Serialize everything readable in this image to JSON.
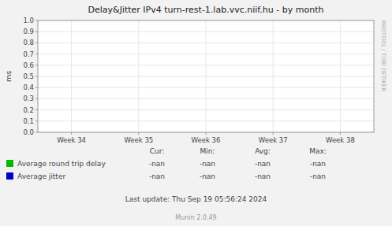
{
  "chart_data": {
    "type": "line",
    "title": "Delay&Jitter IPv4 turn-rest-1.lab.vvc.niif.hu - by month",
    "y_label": "ms",
    "categories": [
      "Week 34",
      "Week 35",
      "Week 36",
      "Week 37",
      "Week 38"
    ],
    "series": [
      {
        "name": "Average round trip delay",
        "color": "#00bb00",
        "values": [
          null,
          null,
          null,
          null,
          null
        ],
        "cur": "-nan",
        "min": "-nan",
        "avg": "-nan",
        "max": "-nan"
      },
      {
        "name": "Average jitter",
        "color": "#0000cc",
        "values": [
          null,
          null,
          null,
          null,
          null
        ],
        "cur": "-nan",
        "min": "-nan",
        "avg": "-nan",
        "max": "-nan"
      }
    ],
    "stats_headers": [
      "Cur:",
      "Min:",
      "Avg:",
      "Max:"
    ],
    "ylim": [
      0.0,
      1.0
    ],
    "yticks": [
      {
        "value": 0.0,
        "label": "0.0"
      },
      0.1,
      0.2,
      0.3,
      0.4,
      0.5,
      0.6,
      0.7,
      0.8,
      0.9,
      {
        "value": 1.0,
        "label": "1.0"
      }
    ],
    "grid": true,
    "legend": "bottom",
    "annotations": [
      "Last update: Thu Sep 19 05:56:24 2024",
      "Munin 2.0.49",
      "RRDTOOL / TOBI OETIKER"
    ]
  }
}
